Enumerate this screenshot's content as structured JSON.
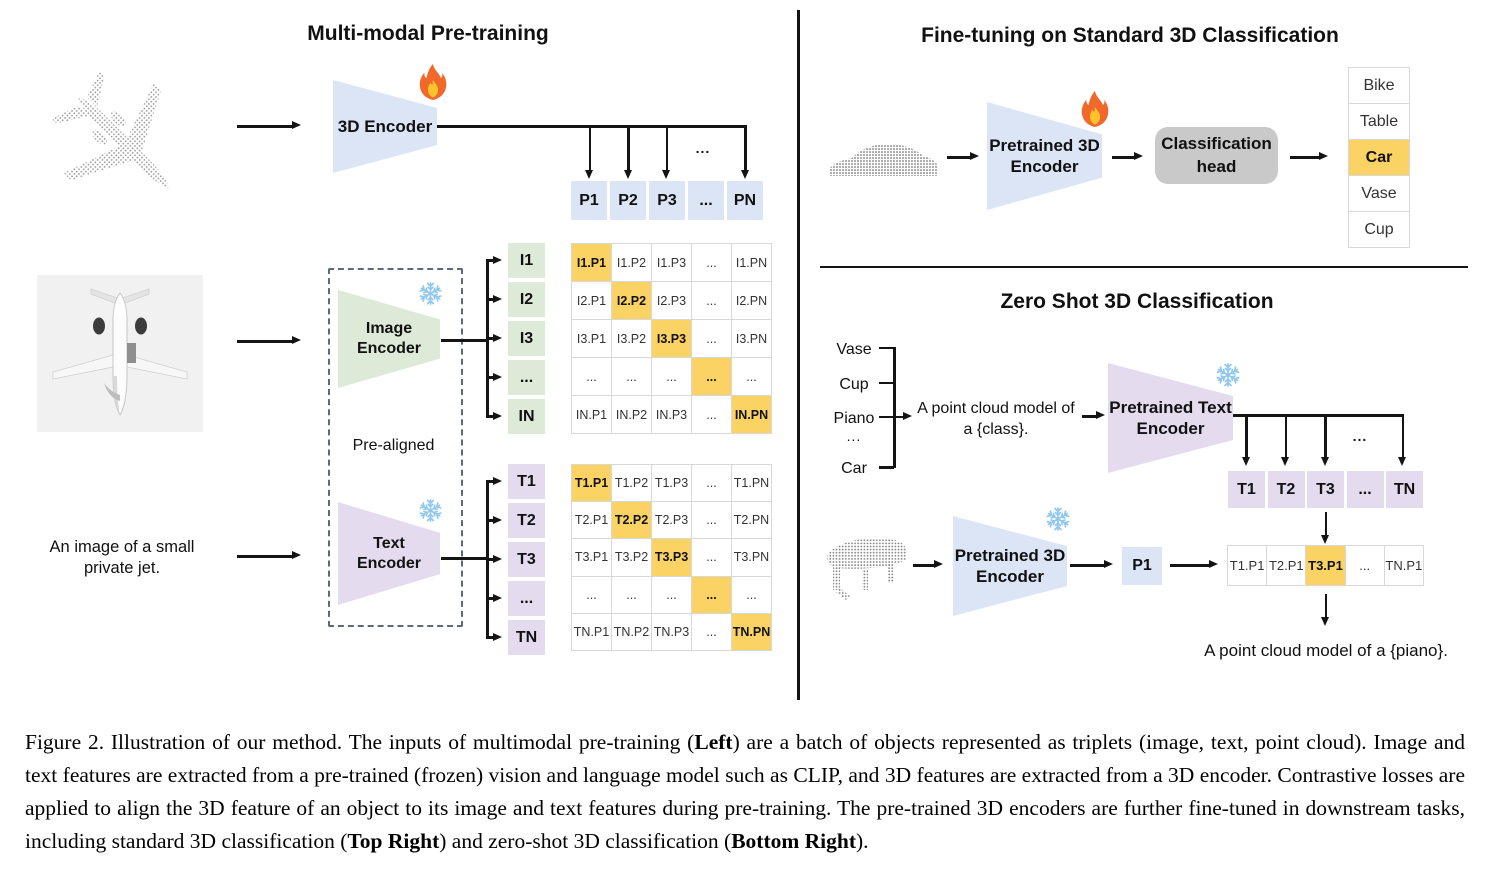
{
  "pretraining": {
    "title": "Multi-modal Pre-training",
    "encoder3d_label": "3D Encoder",
    "image_encoder_line1": "Image",
    "image_encoder_line2": "Encoder",
    "text_encoder_line1": "Text",
    "text_encoder_line2": "Encoder",
    "prealigned": "Pre-aligned",
    "image_caption_line1": "An image of a small",
    "image_caption_line2": "private jet.",
    "dots": "...",
    "p_row": [
      "P1",
      "P2",
      "P3",
      "...",
      "PN"
    ],
    "i_labels": [
      "I1",
      "I2",
      "I3",
      "...",
      "IN"
    ],
    "t_labels": [
      "T1",
      "T2",
      "T3",
      "...",
      "TN"
    ],
    "i_matrix": [
      [
        "I1.P1",
        "I1.P2",
        "I1.P3",
        "...",
        "I1.PN"
      ],
      [
        "I2.P1",
        "I2.P2",
        "I2.P3",
        "...",
        "I2.PN"
      ],
      [
        "I3.P1",
        "I3.P2",
        "I3.P3",
        "...",
        "I3.PN"
      ],
      [
        "...",
        "...",
        "...",
        "...",
        "..."
      ],
      [
        "IN.P1",
        "IN.P2",
        "IN.P3",
        "...",
        "IN.PN"
      ]
    ],
    "t_matrix": [
      [
        "T1.P1",
        "T1.P2",
        "T1.P3",
        "...",
        "T1.PN"
      ],
      [
        "T2.P1",
        "T2.P2",
        "T2.P3",
        "...",
        "T2.PN"
      ],
      [
        "T3.P1",
        "T3.P2",
        "T3.P3",
        "...",
        "T3.PN"
      ],
      [
        "...",
        "...",
        "...",
        "...",
        "..."
      ],
      [
        "TN.P1",
        "TN.P2",
        "TN.P3",
        "...",
        "TN.PN"
      ]
    ]
  },
  "finetune": {
    "title": "Fine-tuning on Standard 3D Classification",
    "encoder_line1": "Pretrained 3D",
    "encoder_line2": "Encoder",
    "head_line1": "Classification",
    "head_line2": "head",
    "classes": [
      "Bike",
      "Table",
      "Car",
      "Vase",
      "Cup"
    ],
    "predicted_class": "Car"
  },
  "zeroshot": {
    "title": "Zero Shot 3D Classification",
    "classes": [
      "Vase",
      "Cup",
      "Piano",
      "...",
      "Car"
    ],
    "prompt_line1": "A point cloud model of",
    "prompt_line2": "a {class}.",
    "text_encoder_line1": "Pretrained Text",
    "text_encoder_line2": "Encoder",
    "encoder_line1": "Pretrained 3D",
    "encoder_line2": "Encoder",
    "t_row": [
      "T1",
      "T2",
      "T3",
      "...",
      "TN"
    ],
    "p1": "P1",
    "result_row": [
      "T1.P1",
      "T2.P1",
      "T3.P1",
      "...",
      "TN.P1"
    ],
    "predicted_cell": "T3.P1",
    "result_text": "A point cloud model of a {piano}.",
    "dots": "..."
  },
  "colors": {
    "encoder_blue": "#dbe5f5",
    "encoder_green": "#dcead7",
    "encoder_purple": "#e5dbee",
    "highlight_orange": "#fbd264",
    "head_gray": "#c9c9c9",
    "line_black": "#141414"
  },
  "caption": {
    "segments": [
      {
        "t": "Figure 2. Illustration of our method.  The inputs of multimodal pre-training (",
        "b": false
      },
      {
        "t": "Left",
        "b": true
      },
      {
        "t": ") are a batch of objects represented as triplets (image, text, point cloud).  Image and text features are extracted from a pre-trained (frozen) vision and language model such as CLIP, and 3D features are extracted from a 3D encoder.  Contrastive losses are applied to align the 3D feature of an object to its image and text features during pre-training.  The pre-trained 3D encoders are further fine-tuned in downstream tasks, including standard 3D classification (",
        "b": false
      },
      {
        "t": "Top Right",
        "b": true
      },
      {
        "t": ") and zero-shot 3D classification (",
        "b": false
      },
      {
        "t": "Bottom Right",
        "b": true
      },
      {
        "t": ").",
        "b": false
      }
    ]
  }
}
